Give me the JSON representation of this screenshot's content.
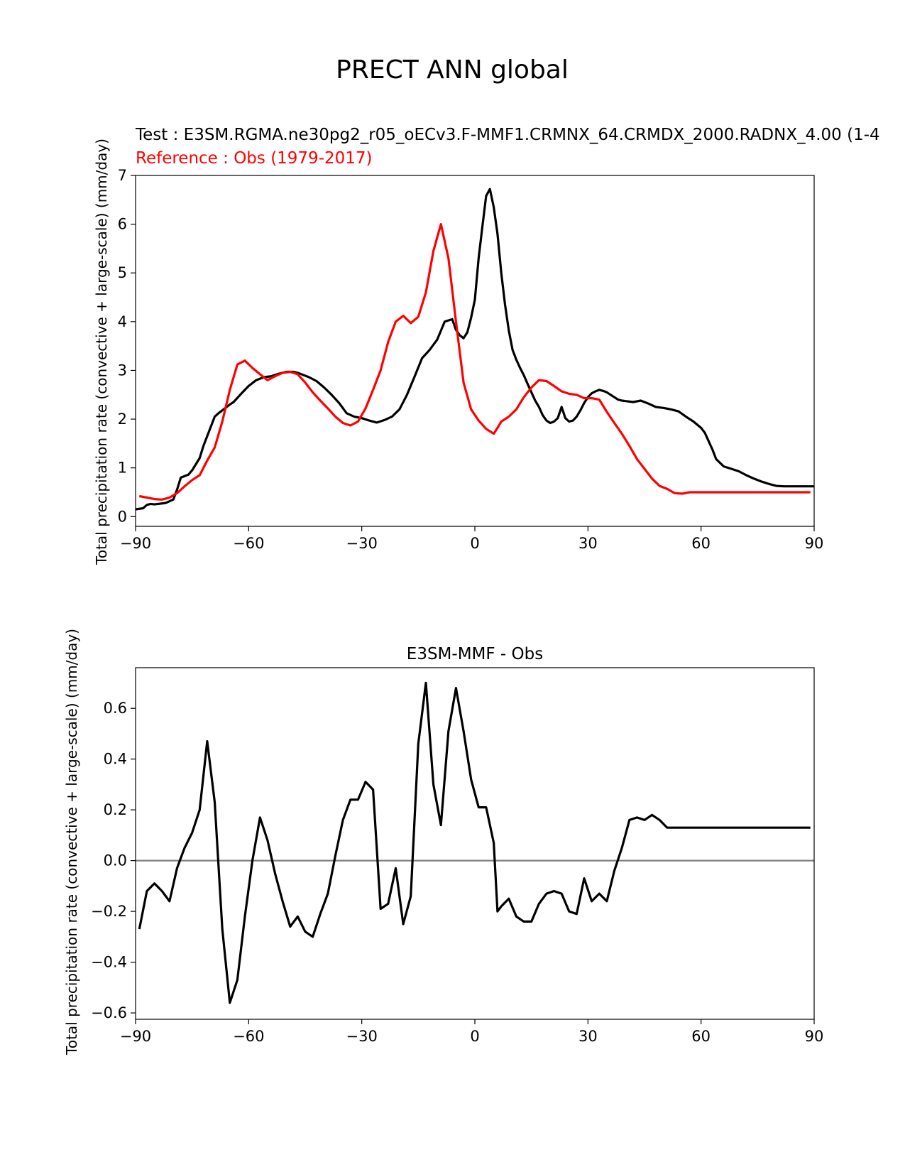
{
  "figure": {
    "suptitle": "PRECT ANN global"
  },
  "chart_data": [
    {
      "type": "line",
      "title_test": "Test : E3SM.RGMA.ne30pg2_r05_oECv3.F-MMF1.CRMNX_64.CRMDX_2000.RADNX_4.00 (1-4",
      "title_reference": "Reference : Obs (1979-2017)",
      "xlabel": "",
      "ylabel": "Total precipitation rate (convective + large-scale) (mm/day)",
      "xlim": [
        -90,
        90
      ],
      "ylim": [
        -0.2,
        7.0
      ],
      "xticks": [
        -90,
        -60,
        -30,
        0,
        30,
        60,
        90
      ],
      "xtick_labels": [
        "−90",
        "−60",
        "−30",
        "0",
        "30",
        "60",
        "90"
      ],
      "yticks": [
        0,
        1,
        2,
        3,
        4,
        5,
        6,
        7
      ],
      "ytick_labels": [
        "0",
        "1",
        "2",
        "3",
        "4",
        "5",
        "6",
        "7"
      ],
      "grid": false,
      "colors": {
        "test": "#000000",
        "reference": "#ff0000"
      },
      "series": [
        {
          "color": "#000000",
          "x": [
            -90,
            -88,
            -87,
            -86,
            -85,
            -84,
            -82,
            -80,
            -79,
            -78,
            -76,
            -75,
            -73,
            -72,
            -71,
            -70,
            -69,
            -68,
            -67,
            -66,
            -65,
            -64,
            -62,
            -60,
            -58,
            -56,
            -54,
            -52,
            -50,
            -48,
            -47,
            -46,
            -44,
            -42,
            -40,
            -38,
            -36,
            -34,
            -32,
            -30,
            -28,
            -26,
            -24,
            -22,
            -20,
            -18,
            -16,
            -14,
            -12,
            -10,
            -8,
            -6,
            -5,
            -4,
            -3,
            -2,
            -1,
            0,
            1,
            2,
            3,
            4,
            5,
            6,
            7,
            8,
            9,
            10,
            11,
            12,
            13,
            14,
            15,
            16,
            17,
            18,
            19,
            20,
            21,
            22,
            23,
            24,
            25,
            26,
            27,
            28,
            29,
            30,
            31,
            32,
            33,
            34,
            35,
            36,
            37,
            38,
            39,
            40,
            42,
            44,
            46,
            48,
            50,
            52,
            54,
            56,
            58,
            60,
            61,
            62,
            63,
            64,
            66,
            68,
            70,
            72,
            74,
            76,
            78,
            80,
            82,
            84,
            86,
            88,
            90
          ],
          "y": [
            0.15,
            0.17,
            0.24,
            0.26,
            0.25,
            0.26,
            0.28,
            0.35,
            0.55,
            0.8,
            0.86,
            0.95,
            1.2,
            1.45,
            1.65,
            1.85,
            2.05,
            2.12,
            2.18,
            2.24,
            2.3,
            2.35,
            2.52,
            2.68,
            2.8,
            2.86,
            2.88,
            2.93,
            2.97,
            2.97,
            2.95,
            2.92,
            2.86,
            2.78,
            2.65,
            2.5,
            2.33,
            2.12,
            2.05,
            2.02,
            1.97,
            1.93,
            1.98,
            2.05,
            2.2,
            2.5,
            2.87,
            3.25,
            3.42,
            3.63,
            4.0,
            4.05,
            3.83,
            3.72,
            3.66,
            3.78,
            4.08,
            4.45,
            5.3,
            5.95,
            6.58,
            6.72,
            6.35,
            5.8,
            5.0,
            4.35,
            3.82,
            3.42,
            3.22,
            3.05,
            2.9,
            2.72,
            2.55,
            2.38,
            2.25,
            2.08,
            1.97,
            1.92,
            1.95,
            2.02,
            2.25,
            2.02,
            1.95,
            1.97,
            2.05,
            2.18,
            2.33,
            2.45,
            2.53,
            2.57,
            2.6,
            2.58,
            2.55,
            2.5,
            2.45,
            2.4,
            2.38,
            2.37,
            2.35,
            2.38,
            2.32,
            2.25,
            2.23,
            2.2,
            2.16,
            2.05,
            1.95,
            1.82,
            1.72,
            1.55,
            1.38,
            1.18,
            1.03,
            0.98,
            0.93,
            0.85,
            0.78,
            0.72,
            0.67,
            0.63,
            0.62,
            0.62,
            0.62,
            0.62,
            0.62
          ]
        },
        {
          "color": "#ff0000",
          "x": [
            -89,
            -87,
            -85,
            -83,
            -81,
            -79,
            -77,
            -75,
            -73,
            -71,
            -69,
            -67,
            -65,
            -63,
            -61,
            -59,
            -57,
            -55,
            -53,
            -51,
            -49,
            -47,
            -45,
            -43,
            -41,
            -39,
            -37,
            -35,
            -33,
            -31,
            -29,
            -27,
            -25,
            -23,
            -21,
            -19,
            -17,
            -15,
            -13,
            -11,
            -9,
            -7,
            -5,
            -3,
            -1,
            1,
            3,
            5,
            6,
            7,
            9,
            11,
            13,
            15,
            17,
            19,
            21,
            23,
            25,
            27,
            29,
            31,
            33,
            35,
            37,
            39,
            41,
            43,
            45,
            47,
            49,
            51,
            53,
            55,
            57,
            59,
            61,
            63,
            65,
            67,
            69,
            71,
            73,
            75,
            77,
            79,
            81,
            83,
            85,
            87,
            89
          ],
          "y": [
            0.42,
            0.39,
            0.36,
            0.35,
            0.39,
            0.48,
            0.62,
            0.75,
            0.85,
            1.15,
            1.42,
            1.95,
            2.6,
            3.12,
            3.2,
            3.05,
            2.92,
            2.8,
            2.88,
            2.95,
            2.97,
            2.92,
            2.75,
            2.55,
            2.38,
            2.22,
            2.05,
            1.92,
            1.87,
            1.95,
            2.22,
            2.6,
            3.0,
            3.58,
            4.0,
            4.12,
            3.97,
            4.1,
            4.6,
            5.45,
            6.0,
            5.3,
            4.0,
            2.75,
            2.2,
            1.97,
            1.8,
            1.7,
            1.82,
            1.95,
            2.05,
            2.2,
            2.45,
            2.65,
            2.8,
            2.78,
            2.68,
            2.57,
            2.52,
            2.5,
            2.43,
            2.43,
            2.4,
            2.15,
            1.92,
            1.7,
            1.45,
            1.18,
            0.98,
            0.78,
            0.63,
            0.57,
            0.48,
            0.47,
            0.5,
            0.5,
            0.5,
            0.5,
            0.5,
            0.5,
            0.5,
            0.5,
            0.5,
            0.5,
            0.5,
            0.5,
            0.5,
            0.5,
            0.5,
            0.5,
            0.5
          ]
        }
      ]
    },
    {
      "type": "line",
      "title": "E3SM-MMF - Obs",
      "xlabel": "",
      "ylabel": "Total precipitation rate (convective + large-scale) (mm/day)",
      "xlim": [
        -90,
        90
      ],
      "ylim": [
        -0.625,
        0.76
      ],
      "xticks": [
        -90,
        -60,
        -30,
        0,
        30,
        60,
        90
      ],
      "xtick_labels": [
        "−90",
        "−60",
        "−30",
        "0",
        "30",
        "60",
        "90"
      ],
      "yticks": [
        -0.6,
        -0.4,
        -0.2,
        0.0,
        0.2,
        0.4,
        0.6
      ],
      "ytick_labels": [
        "−0.6",
        "−0.4",
        "−0.2",
        "0.0",
        "0.2",
        "0.4",
        "0.6"
      ],
      "grid": false,
      "zero_line_color": "#808080",
      "series": [
        {
          "color": "#000000",
          "x": [
            -89,
            -87,
            -85,
            -83,
            -81,
            -79,
            -77,
            -75,
            -73,
            -71,
            -69,
            -67,
            -65,
            -63,
            -61,
            -59,
            -57,
            -55,
            -53,
            -51,
            -49,
            -47,
            -45,
            -43,
            -41,
            -39,
            -37,
            -35,
            -33,
            -31,
            -29,
            -27,
            -25,
            -23,
            -21,
            -19,
            -17,
            -15,
            -13,
            -11,
            -9,
            -7,
            -5,
            -3,
            -1,
            1,
            3,
            5,
            6,
            7,
            9,
            11,
            13,
            15,
            17,
            19,
            21,
            23,
            25,
            27,
            29,
            31,
            33,
            35,
            37,
            39,
            41,
            43,
            45,
            47,
            49,
            51,
            53,
            55,
            57,
            59,
            61,
            63,
            65,
            67,
            69,
            71,
            73,
            75,
            77,
            79,
            81,
            83,
            85,
            87,
            89
          ],
          "y": [
            -0.27,
            -0.12,
            -0.09,
            -0.12,
            -0.16,
            -0.03,
            0.05,
            0.11,
            0.2,
            0.47,
            0.23,
            -0.27,
            -0.56,
            -0.47,
            -0.22,
            0.0,
            0.17,
            0.08,
            -0.05,
            -0.16,
            -0.26,
            -0.22,
            -0.28,
            -0.3,
            -0.21,
            -0.13,
            0.02,
            0.16,
            0.24,
            0.24,
            0.31,
            0.28,
            -0.19,
            -0.17,
            -0.03,
            -0.25,
            -0.14,
            0.46,
            0.7,
            0.3,
            0.14,
            0.51,
            0.68,
            0.51,
            0.32,
            0.21,
            0.21,
            0.07,
            -0.2,
            -0.18,
            -0.15,
            -0.22,
            -0.24,
            -0.24,
            -0.17,
            -0.13,
            -0.12,
            -0.13,
            -0.2,
            -0.21,
            -0.07,
            -0.16,
            -0.13,
            -0.16,
            -0.04,
            0.05,
            0.16,
            0.17,
            0.16,
            0.18,
            0.16,
            0.13,
            0.13,
            0.13,
            0.13,
            0.13,
            0.13,
            0.13,
            0.13,
            0.13,
            0.13,
            0.13,
            0.13,
            0.13,
            0.13,
            0.13,
            0.13,
            0.13,
            0.13,
            0.13,
            0.13
          ]
        }
      ]
    }
  ]
}
